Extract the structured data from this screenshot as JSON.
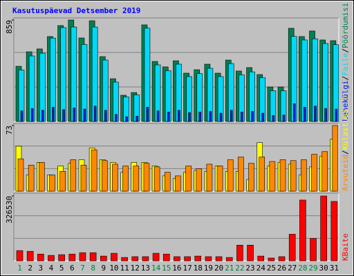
{
  "title": "Kasutuspäevad Detsember 2019",
  "legend_separator": "/",
  "chart_data": [
    {
      "type": "bar",
      "ylim": [
        0,
        859
      ],
      "yticks": [
        859
      ],
      "series": [
        {
          "name": "Pöördumisi",
          "color": "#008050",
          "values": [
            467,
            590,
            614,
            719,
            812,
            859,
            707,
            853,
            549,
            362,
            222,
            245,
            818,
            508,
            462,
            514,
            409,
            438,
            485,
            409,
            520,
            427,
            456,
            397,
            292,
            292,
            789,
            719,
            766,
            690,
            684
          ]
        },
        {
          "name": "Faile",
          "color": "#00d8f8",
          "values": [
            436,
            555,
            578,
            706,
            795,
            800,
            652,
            800,
            520,
            333,
            208,
            225,
            790,
            479,
            430,
            485,
            380,
            405,
            450,
            380,
            490,
            395,
            420,
            370,
            260,
            260,
            720,
            690,
            700,
            660,
            650
          ]
        },
        {
          "name": "Lehekülgi",
          "color": "#0020e0",
          "values": [
            90,
            110,
            95,
            120,
            100,
            115,
            105,
            130,
            95,
            60,
            40,
            45,
            120,
            90,
            80,
            95,
            75,
            80,
            85,
            70,
            95,
            80,
            85,
            70,
            50,
            55,
            150,
            120,
            130,
            110,
            105
          ]
        }
      ]
    },
    {
      "type": "bar",
      "ylim": [
        0,
        73
      ],
      "yticks": [
        73
      ],
      "series": [
        {
          "name": "Külastusi",
          "color": "#ffff00",
          "values": [
            50,
            18,
            32,
            18,
            28,
            31,
            35,
            48,
            35,
            32,
            21,
            32,
            32,
            28,
            17,
            14,
            21,
            23,
            22,
            28,
            22,
            22,
            13,
            54,
            28,
            32,
            30,
            18,
            27,
            39,
            58
          ]
        },
        {
          "name": "Arvuteid",
          "color": "#ff8800",
          "values": [
            36,
            29,
            32,
            18,
            22,
            35,
            29,
            46,
            34,
            30,
            28,
            28,
            31,
            27,
            21,
            17,
            28,
            25,
            30,
            28,
            35,
            38,
            31,
            38,
            33,
            35,
            34,
            35,
            41,
            44,
            73
          ]
        }
      ]
    },
    {
      "type": "bar",
      "ylim": [
        0,
        326530
      ],
      "yticks": [
        326530
      ],
      "categories": [
        "1",
        "2",
        "3",
        "4",
        "5",
        "6",
        "7",
        "8",
        "9",
        "10",
        "11",
        "12",
        "13",
        "14",
        "15",
        "16",
        "17",
        "18",
        "19",
        "20",
        "21",
        "22",
        "23",
        "24",
        "25",
        "26",
        "27",
        "28",
        "29",
        "30",
        "31"
      ],
      "category_colors": [
        "#008040",
        "#000000",
        "#000000",
        "#000000",
        "#000000",
        "#000000",
        "#008040",
        "#008040",
        "#000000",
        "#000000",
        "#000000",
        "#000000",
        "#000000",
        "#008040",
        "#008040",
        "#000000",
        "#000000",
        "#000000",
        "#000000",
        "#000000",
        "#008040",
        "#008040",
        "#000000",
        "#000000",
        "#000000",
        "#000000",
        "#000000",
        "#008040",
        "#008040",
        "#000000",
        "#000000"
      ],
      "series": [
        {
          "name": "KBaite",
          "color": "#ff0000",
          "values": [
            51557,
            48000,
            34000,
            27500,
            31000,
            34000,
            41000,
            41000,
            24000,
            38000,
            17000,
            21000,
            21000,
            38000,
            34000,
            21000,
            21000,
            24000,
            21000,
            21000,
            17000,
            79000,
            79000,
            24000,
            14000,
            21000,
            134000,
            306000,
            113000,
            326530,
            299000
          ]
        }
      ]
    }
  ]
}
